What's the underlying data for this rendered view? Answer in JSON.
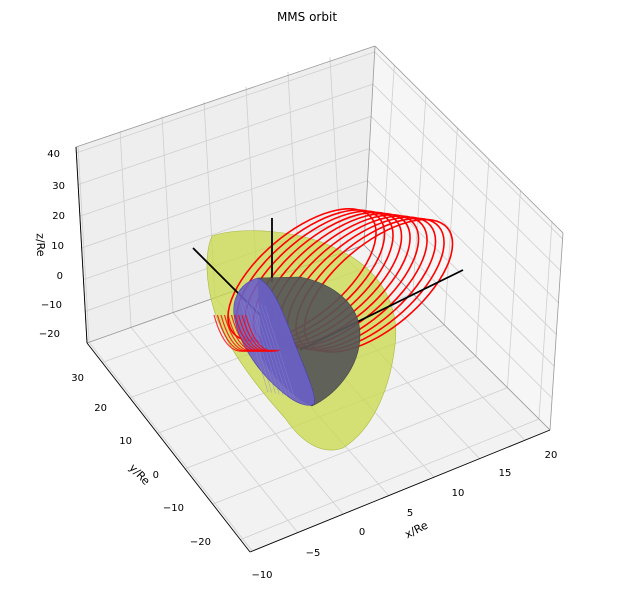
{
  "chart_data": {
    "type": "3d-surface-line",
    "title": "MMS orbit",
    "xlabel": "x/Re",
    "ylabel": "y/Re",
    "zlabel": "z/Re",
    "xlim": [
      -10,
      20
    ],
    "ylim": [
      -25,
      35
    ],
    "zlim": [
      -25,
      40
    ],
    "x_ticks": [
      "−10",
      "−5",
      "0",
      "5",
      "10",
      "15",
      "20"
    ],
    "y_ticks": [
      "−20",
      "−10",
      "0",
      "10",
      "20",
      "30"
    ],
    "z_ticks": [
      "−20",
      "−10",
      "0",
      "10",
      "20",
      "30",
      "40"
    ],
    "grid": true,
    "colors": {
      "orbit": "#ff0000",
      "magnetopause": "#c9d94a",
      "bow_shock": "#565656",
      "earth_shadow": "#6a5fc8",
      "axes_lines": "#000000",
      "pane_left": "#eeeeee",
      "pane_right": "#f6f6f6",
      "pane_floor": "#f2f2f2",
      "grid": "#cfcfcf"
    },
    "series": [
      {
        "kind": "orbit",
        "loops": 10
      }
    ]
  }
}
